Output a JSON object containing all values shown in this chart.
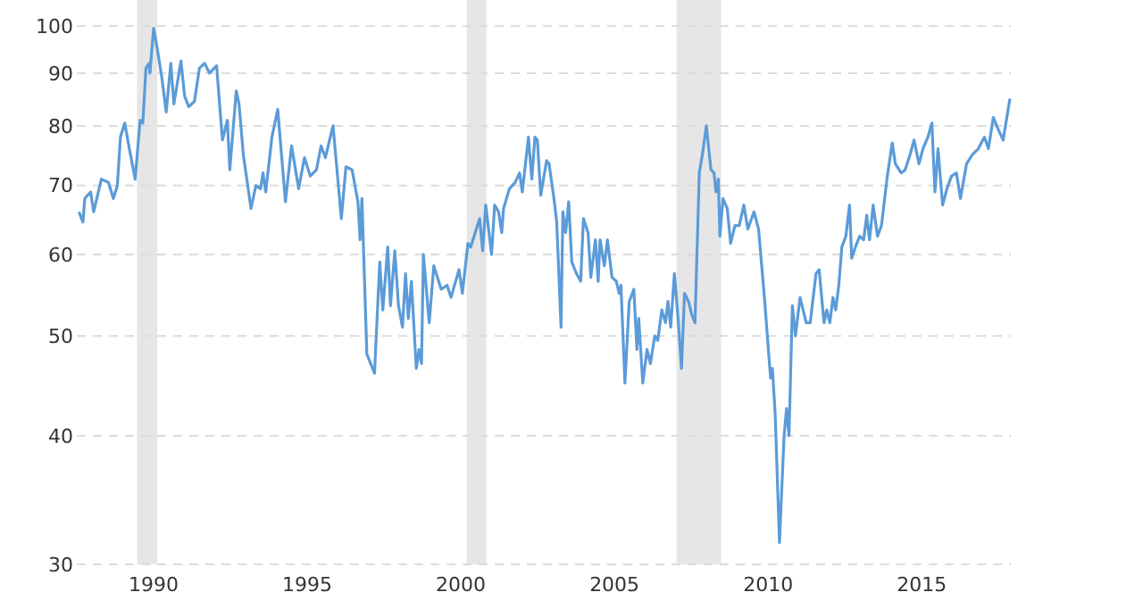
{
  "chart_data": {
    "type": "line",
    "log": true,
    "grid": "y",
    "line_style": "solid",
    "marker": "none",
    "xlim": [
      1987.5,
      2017.9
    ],
    "xticks": [
      1990,
      1995,
      2000,
      2005,
      2010,
      2015
    ],
    "ylim": [
      30,
      106
    ],
    "yticks": [
      30,
      40,
      50,
      60,
      70,
      80,
      90,
      100
    ],
    "bands": [
      {
        "axis": "x",
        "from": 1989.46,
        "to": 1990.12,
        "color": "#e6e6e6"
      },
      {
        "axis": "x",
        "from": 2000.19,
        "to": 2000.83,
        "color": "#e6e6e6"
      },
      {
        "axis": "x",
        "from": 2007.02,
        "to": 2008.47,
        "color": "#e6e6e6"
      }
    ],
    "series": [
      {
        "color": "#5b9bd8",
        "x": [
          1987.57,
          1987.7,
          1987.76,
          1987.95,
          1988.05,
          1988.3,
          1988.53,
          1988.69,
          1988.82,
          1988.92,
          1989.06,
          1989.21,
          1989.4,
          1989.56,
          1989.65,
          1989.75,
          1989.85,
          1989.88,
          1990.0,
          1990.12,
          1990.27,
          1990.41,
          1990.56,
          1990.66,
          1990.89,
          1991.01,
          1991.14,
          1991.33,
          1991.49,
          1991.66,
          1991.82,
          1992.05,
          1992.24,
          1992.4,
          1992.48,
          1992.69,
          1992.78,
          1992.92,
          1993.17,
          1993.33,
          1993.48,
          1993.56,
          1993.65,
          1993.85,
          1994.04,
          1994.29,
          1994.49,
          1994.72,
          1994.91,
          1995.1,
          1995.3,
          1995.45,
          1995.59,
          1995.84,
          1996.11,
          1996.26,
          1996.46,
          1996.65,
          1996.72,
          1996.78,
          1996.94,
          1997.19,
          1997.36,
          1997.46,
          1997.62,
          1997.71,
          1997.85,
          1997.97,
          1998.1,
          1998.2,
          1998.29,
          1998.39,
          1998.55,
          1998.64,
          1998.72,
          1998.78,
          1998.97,
          1999.12,
          1999.36,
          1999.55,
          1999.68,
          1999.94,
          2000.05,
          2000.23,
          2000.32,
          2000.61,
          2000.71,
          2000.81,
          2001.0,
          2001.1,
          2001.23,
          2001.33,
          2001.39,
          2001.58,
          2001.77,
          2001.91,
          2002.0,
          2002.2,
          2002.31,
          2002.41,
          2002.49,
          2002.6,
          2002.79,
          2002.87,
          2003.03,
          2003.12,
          2003.26,
          2003.32,
          2003.41,
          2003.51,
          2003.61,
          2003.76,
          2003.9,
          2003.99,
          2004.14,
          2004.23,
          2004.38,
          2004.47,
          2004.53,
          2004.67,
          2004.77,
          2004.92,
          2005.06,
          2005.15,
          2005.21,
          2005.34,
          2005.48,
          2005.63,
          2005.73,
          2005.79,
          2005.92,
          2006.06,
          2006.17,
          2006.31,
          2006.41,
          2006.54,
          2006.66,
          2006.74,
          2006.83,
          2006.95,
          2007.08,
          2007.18,
          2007.28,
          2007.41,
          2007.51,
          2007.62,
          2007.76,
          2007.86,
          2007.99,
          2008.14,
          2008.24,
          2008.3,
          2008.38,
          2008.43,
          2008.53,
          2008.67,
          2008.78,
          2008.92,
          2009.06,
          2009.21,
          2009.34,
          2009.54,
          2009.69,
          2009.88,
          2010.08,
          2010.14,
          2010.23,
          2010.37,
          2010.52,
          2010.6,
          2010.68,
          2010.79,
          2010.89,
          2011.04,
          2011.24,
          2011.37,
          2011.56,
          2011.66,
          2011.82,
          2011.91,
          2012.01,
          2012.11,
          2012.2,
          2012.3,
          2012.4,
          2012.53,
          2012.65,
          2012.72,
          2012.84,
          2012.98,
          2013.11,
          2013.21,
          2013.3,
          2013.42,
          2013.56,
          2013.69,
          2013.88,
          2014.04,
          2014.14,
          2014.33,
          2014.46,
          2014.62,
          2014.75,
          2014.91,
          2015.04,
          2015.2,
          2015.33,
          2015.43,
          2015.53,
          2015.68,
          2015.82,
          2015.97,
          2016.13,
          2016.26,
          2016.46,
          2016.65,
          2016.84,
          2017.04,
          2017.17,
          2017.33,
          2017.48,
          2017.65,
          2017.87
        ],
        "values": [
          66,
          64.5,
          68,
          69,
          66,
          71,
          70.5,
          68,
          70,
          78,
          80.5,
          76,
          71,
          81,
          80.5,
          91,
          92,
          90,
          99.5,
          95,
          89,
          82.5,
          92,
          84,
          92.5,
          85.5,
          83.5,
          84.5,
          91,
          92,
          90,
          91.5,
          77.5,
          81,
          72.5,
          86.5,
          84,
          75,
          66.5,
          70,
          69.5,
          72,
          69,
          78,
          83,
          67.5,
          76.5,
          69.5,
          74.5,
          71.5,
          72.5,
          76.5,
          74.5,
          80,
          65,
          73,
          72.5,
          67.5,
          62,
          68,
          48,
          46,
          59,
          53,
          61,
          53.5,
          60.5,
          53.5,
          51,
          57.5,
          52,
          56.5,
          46.5,
          48.5,
          47,
          60,
          51.5,
          58.5,
          55.5,
          56,
          54.5,
          58,
          55,
          61.5,
          61,
          65,
          60.5,
          67,
          60,
          67,
          66,
          63,
          66.5,
          69.5,
          70.5,
          72,
          69,
          78,
          71,
          78,
          77.5,
          68.5,
          74,
          73.5,
          68,
          64.5,
          51,
          66,
          63,
          67.5,
          59,
          57.5,
          56.5,
          65,
          63,
          57,
          62,
          56.5,
          62,
          58.5,
          62,
          57,
          56.5,
          55,
          56,
          45,
          54,
          55.5,
          48.5,
          52,
          45,
          48.5,
          47,
          50,
          49.5,
          53,
          51.5,
          54,
          51,
          57.5,
          51.5,
          46.5,
          55,
          54,
          52.5,
          51.5,
          72,
          75,
          80,
          72.5,
          72,
          69,
          71,
          62.5,
          68,
          66.5,
          61.5,
          64,
          64,
          67,
          63.5,
          66,
          63.5,
          54.5,
          45.5,
          46.5,
          42,
          31.5,
          40,
          42.5,
          40,
          53.5,
          50,
          54.5,
          51.5,
          51.5,
          57.5,
          58,
          51.5,
          53,
          51.5,
          54.5,
          53,
          56,
          61,
          62.5,
          67,
          59.5,
          61,
          62.5,
          62,
          65.5,
          62,
          67,
          62.5,
          64,
          71.5,
          77,
          73.5,
          72,
          72.5,
          75,
          77.5,
          73.5,
          76,
          78,
          80.5,
          69,
          76,
          67,
          69.5,
          71.5,
          72,
          68,
          73.5,
          75,
          76,
          78,
          76,
          81.5,
          79.5,
          77.5,
          85
        ]
      }
    ]
  }
}
